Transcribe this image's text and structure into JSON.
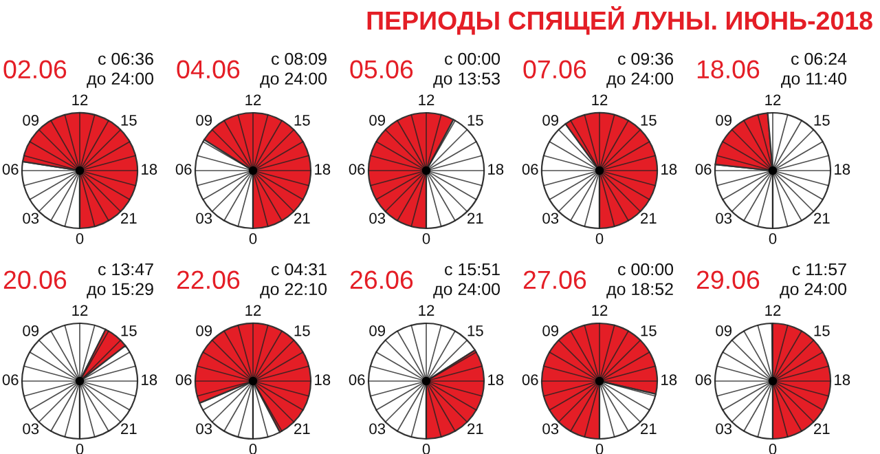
{
  "chart_data": [
    {
      "type": "other",
      "title": "ПЕРИОДЫ СПЯЩЕЙ ЛУНЫ. ИЮНЬ-2018"
    },
    {
      "type": "pie",
      "title": "02.06",
      "subtitle": "с 06:36\nдо 24:00",
      "categories": [
        null,
        null
      ],
      "values": [
        27.5,
        72.5
      ],
      "colors": [
        "#ffffff",
        "#e41e26"
      ],
      "annotations": [
        "12",
        "15",
        "18",
        "21",
        "0",
        "03",
        "06",
        "09"
      ]
    },
    {
      "type": "pie",
      "title": "04.06",
      "subtitle": "с 08:09\nдо 24:00",
      "categories": [
        null,
        null
      ],
      "values": [
        34.0,
        66.0
      ],
      "colors": [
        "#ffffff",
        "#e41e26"
      ],
      "annotations": [
        "12",
        "15",
        "18",
        "21",
        "0",
        "03",
        "06",
        "09"
      ]
    },
    {
      "type": "pie",
      "title": "05.06",
      "subtitle": "с 00:00\nдо 13:53",
      "categories": [
        null,
        null
      ],
      "values": [
        57.8,
        42.2
      ],
      "colors": [
        "#e41e26",
        "#ffffff"
      ],
      "annotations": [
        "12",
        "15",
        "18",
        "21",
        "0",
        "03",
        "06",
        "09"
      ]
    },
    {
      "type": "pie",
      "title": "07.06",
      "subtitle": "с 09:36\nдо 24:00",
      "categories": [
        null,
        null
      ],
      "values": [
        40,
        60
      ],
      "colors": [
        "#ffffff",
        "#e41e26"
      ],
      "annotations": [
        "12",
        "15",
        "18",
        "21",
        "0",
        "03",
        "06",
        "09"
      ]
    },
    {
      "type": "pie",
      "title": "18.06",
      "subtitle": "с 06:24\nдо 11:40",
      "categories": [
        null,
        null,
        null
      ],
      "values": [
        26.7,
        21.9,
        51.4
      ],
      "colors": [
        "#ffffff",
        "#e41e26",
        "#ffffff"
      ],
      "annotations": [
        "12",
        "15",
        "18",
        "21",
        "0",
        "03",
        "06",
        "09"
      ]
    },
    {
      "type": "pie",
      "title": "20.06",
      "subtitle": "с 13:47\nдо 15:29",
      "categories": [
        null,
        null,
        null
      ],
      "values": [
        57.4,
        7.1,
        35.5
      ],
      "colors": [
        "#ffffff",
        "#e41e26",
        "#ffffff"
      ],
      "annotations": [
        "12",
        "15",
        "18",
        "21",
        "0",
        "03",
        "06",
        "09"
      ]
    },
    {
      "type": "pie",
      "title": "22.06",
      "subtitle": "с 04:31\nдо 22:10",
      "categories": [
        null,
        null,
        null
      ],
      "values": [
        18.8,
        73.5,
        7.7
      ],
      "colors": [
        "#ffffff",
        "#e41e26",
        "#ffffff"
      ],
      "annotations": [
        "12",
        "15",
        "18",
        "21",
        "0",
        "03",
        "06",
        "09"
      ]
    },
    {
      "type": "pie",
      "title": "26.06",
      "subtitle": "с 15:51\nдо 24:00",
      "categories": [
        null,
        null
      ],
      "values": [
        66.0,
        34.0
      ],
      "colors": [
        "#ffffff",
        "#e41e26"
      ],
      "annotations": [
        "12",
        "15",
        "18",
        "21",
        "0",
        "03",
        "06",
        "09"
      ]
    },
    {
      "type": "pie",
      "title": "27.06",
      "subtitle": "с 00:00\nдо 18:52",
      "categories": [
        null,
        null
      ],
      "values": [
        78.6,
        21.4
      ],
      "colors": [
        "#e41e26",
        "#ffffff"
      ],
      "annotations": [
        "12",
        "15",
        "18",
        "21",
        "0",
        "03",
        "06",
        "09"
      ]
    },
    {
      "type": "pie",
      "title": "29.06",
      "subtitle": "с 11:57\nдо 24:00",
      "categories": [
        null,
        null
      ],
      "values": [
        49.8,
        50.2
      ],
      "colors": [
        "#ffffff",
        "#e41e26"
      ],
      "annotations": [
        "12",
        "15",
        "18",
        "21",
        "0",
        "03",
        "06",
        "09"
      ]
    }
  ]
}
